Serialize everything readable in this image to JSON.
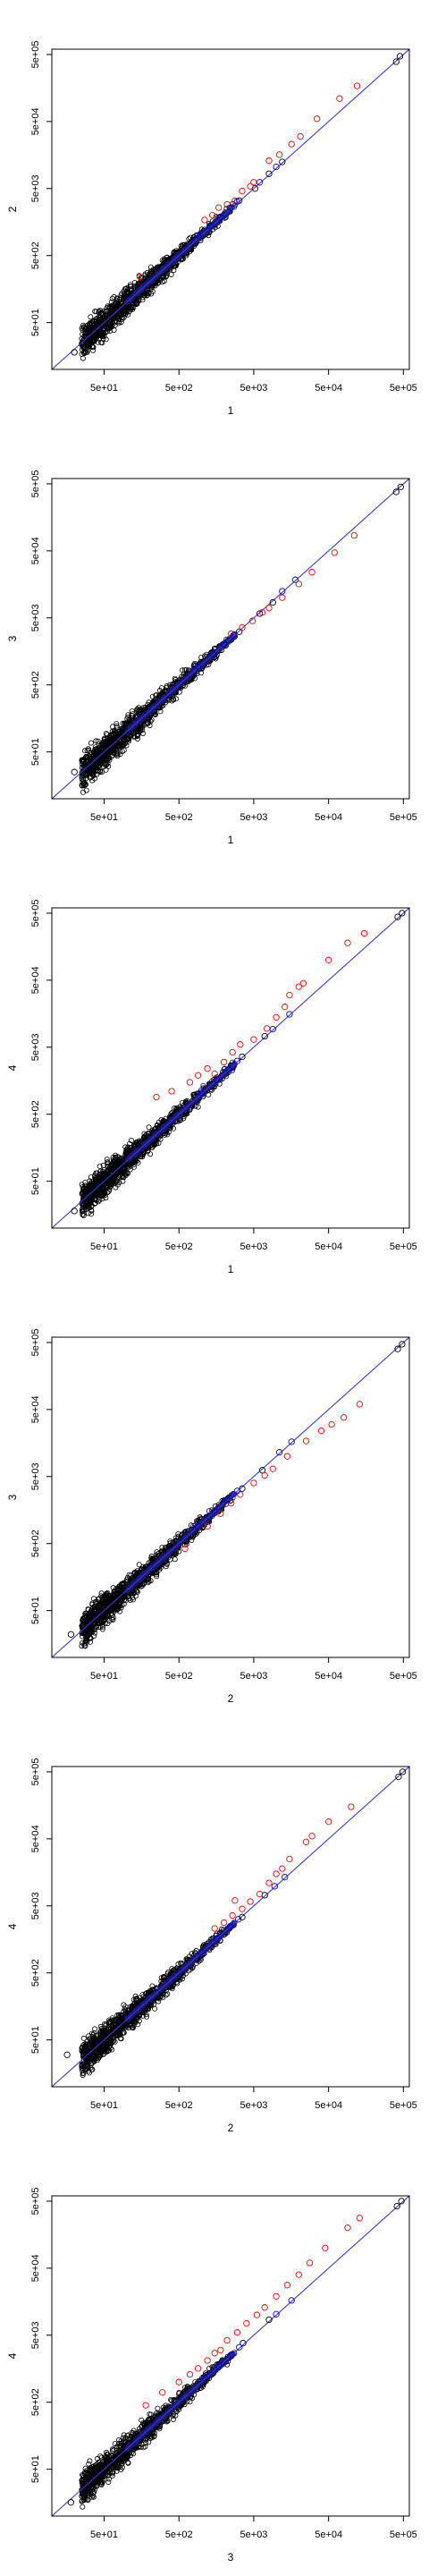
{
  "chart_data": [
    {
      "type": "scatter",
      "xlabel": "1",
      "ylabel": "2",
      "scale": "log",
      "xlim": [
        10,
        600000
      ],
      "ylim": [
        10,
        600000
      ],
      "xticks": [
        "5e+01",
        "5e+02",
        "5e+03",
        "5e+04",
        "5e+05"
      ],
      "yticks": [
        "5e+01",
        "5e+02",
        "5e+03",
        "5e+04",
        "5e+05"
      ],
      "reference_line": "y = x",
      "cloud_range": [
        25,
        3000
      ],
      "series": [
        {
          "color": "#000000",
          "points": [
            [
              20,
              18
            ],
            [
              3200,
              3300
            ],
            [
              5200,
              5000
            ],
            [
              8000,
              8300
            ],
            [
              12000,
              12500
            ],
            [
              400000,
              390000
            ],
            [
              450000,
              470000
            ]
          ]
        },
        {
          "color": "#ff0000",
          "points": [
            [
              150,
              240
            ],
            [
              1100,
              1700
            ],
            [
              1400,
              2000
            ],
            [
              1700,
              2600
            ],
            [
              2200,
              2900
            ],
            [
              2800,
              3300
            ],
            [
              3500,
              4600
            ],
            [
              4500,
              5400
            ],
            [
              5000,
              6200
            ],
            [
              8000,
              13000
            ],
            [
              11000,
              16000
            ],
            [
              16000,
              23000
            ],
            [
              21000,
              30000
            ],
            [
              35000,
              55000
            ],
            [
              70000,
              110000
            ],
            [
              120000,
              170000
            ]
          ]
        },
        {
          "color": "#0000cc",
          "points": [
            [
              900,
              1000
            ],
            [
              1300,
              1400
            ],
            [
              1800,
              1900
            ],
            [
              2500,
              2600
            ],
            [
              3000,
              3200
            ],
            [
              6000,
              6200
            ],
            [
              10000,
              10500
            ]
          ]
        }
      ]
    },
    {
      "type": "scatter",
      "xlabel": "1",
      "ylabel": "3",
      "scale": "log",
      "xlim": [
        10,
        600000
      ],
      "ylim": [
        10,
        600000
      ],
      "xticks": [
        "5e+01",
        "5e+02",
        "5e+03",
        "5e+04",
        "5e+05"
      ],
      "yticks": [
        "5e+01",
        "5e+02",
        "5e+03",
        "5e+04",
        "5e+05"
      ],
      "reference_line": "y = x",
      "cloud_range": [
        25,
        3000
      ],
      "series": [
        {
          "color": "#000000",
          "points": [
            [
              20,
              25
            ],
            [
              3200,
              3100
            ],
            [
              6000,
              5800
            ],
            [
              9000,
              8500
            ],
            [
              400000,
              380000
            ],
            [
              460000,
              450000
            ]
          ]
        },
        {
          "color": "#ff0000",
          "points": [
            [
              2500,
              2900
            ],
            [
              3500,
              3600
            ],
            [
              4800,
              4500
            ],
            [
              6500,
              6000
            ],
            [
              8000,
              7000
            ],
            [
              12000,
              10000
            ],
            [
              20000,
              16000
            ],
            [
              30000,
              24000
            ],
            [
              60000,
              47000
            ],
            [
              110000,
              85000
            ]
          ]
        },
        {
          "color": "#0000cc",
          "points": [
            [
              900,
              950
            ],
            [
              1400,
              1450
            ],
            [
              2000,
              2050
            ],
            [
              2700,
              2750
            ],
            [
              12000,
              12500
            ],
            [
              18000,
              18500
            ]
          ]
        }
      ]
    },
    {
      "type": "scatter",
      "xlabel": "1",
      "ylabel": "4",
      "scale": "log",
      "xlim": [
        10,
        600000
      ],
      "ylim": [
        10,
        600000
      ],
      "xticks": [
        "5e+01",
        "5e+02",
        "5e+03",
        "5e+04",
        "5e+05"
      ],
      "yticks": [
        "5e+01",
        "5e+02",
        "5e+03",
        "5e+04",
        "5e+05"
      ],
      "reference_line": "y = x",
      "cloud_range": [
        25,
        3000
      ],
      "series": [
        {
          "color": "#000000",
          "points": [
            [
              20,
              18
            ],
            [
              3500,
              3600
            ],
            [
              7000,
              7300
            ],
            [
              420000,
              440000
            ],
            [
              480000,
              500000
            ]
          ]
        },
        {
          "color": "#ff0000",
          "points": [
            [
              250,
              900
            ],
            [
              400,
              1100
            ],
            [
              700,
              1500
            ],
            [
              900,
              1900
            ],
            [
              1200,
              2400
            ],
            [
              1500,
              2000
            ],
            [
              2000,
              3000
            ],
            [
              2600,
              4200
            ],
            [
              3300,
              5500
            ],
            [
              5000,
              6500
            ],
            [
              7500,
              9500
            ],
            [
              10000,
              14000
            ],
            [
              13000,
              20000
            ],
            [
              15000,
              30000
            ],
            [
              20000,
              40000
            ],
            [
              23000,
              45000
            ],
            [
              50000,
              100000
            ],
            [
              90000,
              180000
            ],
            [
              150000,
              250000
            ]
          ]
        },
        {
          "color": "#0000cc",
          "points": [
            [
              1000,
              1050
            ],
            [
              1600,
              1650
            ],
            [
              2300,
              2350
            ],
            [
              3000,
              3100
            ],
            [
              9000,
              9300
            ],
            [
              15000,
              15500
            ]
          ]
        }
      ]
    },
    {
      "type": "scatter",
      "xlabel": "2",
      "ylabel": "3",
      "scale": "log",
      "xlim": [
        10,
        600000
      ],
      "ylim": [
        10,
        600000
      ],
      "xticks": [
        "5e+01",
        "5e+02",
        "5e+03",
        "5e+04",
        "5e+05"
      ],
      "yticks": [
        "5e+01",
        "5e+02",
        "5e+03",
        "5e+04",
        "5e+05"
      ],
      "reference_line": "y = x",
      "cloud_range": [
        25,
        3000
      ],
      "series": [
        {
          "color": "#000000",
          "points": [
            [
              18,
              22
            ],
            [
              3500,
              3300
            ],
            [
              6500,
              6200
            ],
            [
              420000,
              400000
            ],
            [
              480000,
              470000
            ]
          ]
        },
        {
          "color": "#ff0000",
          "points": [
            [
              600,
              420
            ],
            [
              1200,
              900
            ],
            [
              1800,
              1400
            ],
            [
              2500,
              2000
            ],
            [
              3300,
              2700
            ],
            [
              5000,
              4000
            ],
            [
              7000,
              5200
            ],
            [
              9000,
              6500
            ],
            [
              14000,
              10000
            ],
            [
              25000,
              17000
            ],
            [
              40000,
              24000
            ],
            [
              55000,
              30000
            ],
            [
              80000,
              38000
            ],
            [
              130000,
              60000
            ]
          ]
        },
        {
          "color": "#0000cc",
          "points": [
            [
              900,
              920
            ],
            [
              1500,
              1520
            ],
            [
              2200,
              2250
            ],
            [
              3000,
              3050
            ],
            [
              11000,
              11500
            ],
            [
              16000,
              16500
            ]
          ]
        }
      ]
    },
    {
      "type": "scatter",
      "xlabel": "2",
      "ylabel": "4",
      "scale": "log",
      "xlim": [
        10,
        600000
      ],
      "ylim": [
        10,
        600000
      ],
      "xticks": [
        "5e+01",
        "5e+02",
        "5e+03",
        "5e+04",
        "5e+05"
      ],
      "yticks": [
        "5e+01",
        "5e+02",
        "5e+03",
        "5e+04",
        "5e+05"
      ],
      "reference_line": "y = x",
      "cloud_range": [
        25,
        3000
      ],
      "series": [
        {
          "color": "#000000",
          "points": [
            [
              16,
              30
            ],
            [
              3500,
              3400
            ],
            [
              7000,
              7200
            ],
            [
              430000,
              420000
            ],
            [
              490000,
              500000
            ]
          ]
        },
        {
          "color": "#ff0000",
          "points": [
            [
              1500,
              2300
            ],
            [
              2000,
              2800
            ],
            [
              2600,
              3600
            ],
            [
              2800,
              6000
            ],
            [
              3500,
              4500
            ],
            [
              4500,
              5800
            ],
            [
              6000,
              7500
            ],
            [
              8000,
              11000
            ],
            [
              10000,
              15000
            ],
            [
              12000,
              18000
            ],
            [
              15000,
              25000
            ],
            [
              25000,
              45000
            ],
            [
              30000,
              55000
            ],
            [
              50000,
              90000
            ],
            [
              100000,
              150000
            ]
          ]
        },
        {
          "color": "#0000cc",
          "points": [
            [
              1000,
              1020
            ],
            [
              1600,
              1640
            ],
            [
              2400,
              2450
            ],
            [
              3100,
              3150
            ],
            [
              9500,
              9800
            ],
            [
              13000,
              13400
            ]
          ]
        }
      ]
    },
    {
      "type": "scatter",
      "xlabel": "3",
      "ylabel": "4",
      "scale": "log",
      "xlim": [
        10,
        600000
      ],
      "ylim": [
        10,
        600000
      ],
      "xticks": [
        "5e+01",
        "5e+02",
        "5e+03",
        "5e+04",
        "5e+05"
      ],
      "yticks": [
        "5e+01",
        "5e+02",
        "5e+03",
        "5e+04",
        "5e+05"
      ],
      "reference_line": "y = x",
      "cloud_range": [
        25,
        3000
      ],
      "series": [
        {
          "color": "#000000",
          "points": [
            [
              18,
              16
            ],
            [
              3600,
              3800
            ],
            [
              8000,
              8500
            ],
            [
              410000,
              420000
            ],
            [
              470000,
              500000
            ]
          ]
        },
        {
          "color": "#ff0000",
          "points": [
            [
              180,
              450
            ],
            [
              300,
              700
            ],
            [
              500,
              1000
            ],
            [
              700,
              1300
            ],
            [
              900,
              1600
            ],
            [
              1200,
              2100
            ],
            [
              1500,
              2700
            ],
            [
              1800,
              3000
            ],
            [
              2200,
              4200
            ],
            [
              3000,
              5500
            ],
            [
              4000,
              7500
            ],
            [
              5500,
              10000
            ],
            [
              7000,
              13000
            ],
            [
              10000,
              19000
            ],
            [
              14000,
              28000
            ],
            [
              20000,
              40000
            ],
            [
              28000,
              60000
            ],
            [
              45000,
              100000
            ],
            [
              90000,
              200000
            ],
            [
              130000,
              280000
            ]
          ]
        },
        {
          "color": "#0000cc",
          "points": [
            [
              1100,
              1150
            ],
            [
              1700,
              1750
            ],
            [
              2500,
              2550
            ],
            [
              3200,
              3300
            ],
            [
              10000,
              10300
            ],
            [
              16000,
              16500
            ]
          ]
        }
      ]
    }
  ]
}
